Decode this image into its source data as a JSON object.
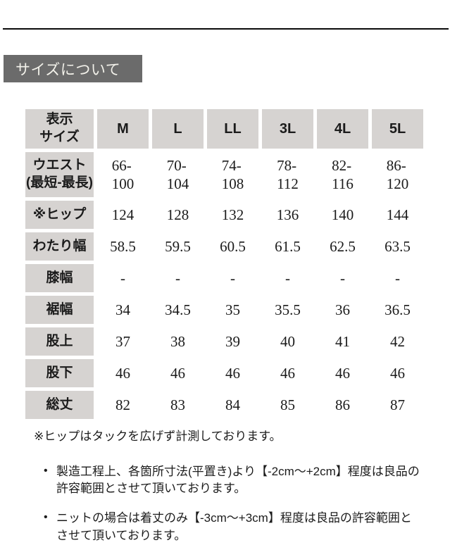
{
  "page": {
    "title_badge": "サイズについて"
  },
  "size_table": {
    "corner_label": [
      "表示",
      "サイズ"
    ],
    "sizes": [
      "M",
      "L",
      "LL",
      "3L",
      "4L",
      "5L"
    ],
    "rows": [
      {
        "key": "waist",
        "label": [
          "ウエスト",
          "(最短-最長)"
        ],
        "values": [
          [
            "66-",
            "100"
          ],
          [
            "70-",
            "104"
          ],
          [
            "74-",
            "108"
          ],
          [
            "78-",
            "112"
          ],
          [
            "82-",
            "116"
          ],
          [
            "86-",
            "120"
          ]
        ]
      },
      {
        "key": "hip",
        "label": "※ヒップ",
        "values": [
          "124",
          "128",
          "132",
          "136",
          "140",
          "144"
        ]
      },
      {
        "key": "thigh-width",
        "label": "わたり幅",
        "values": [
          "58.5",
          "59.5",
          "60.5",
          "61.5",
          "62.5",
          "63.5"
        ]
      },
      {
        "key": "knee-width",
        "label": "膝幅",
        "values": [
          "-",
          "-",
          "-",
          "-",
          "-",
          "-"
        ]
      },
      {
        "key": "hem-width",
        "label": "裾幅",
        "values": [
          "34",
          "34.5",
          "35",
          "35.5",
          "36",
          "36.5"
        ]
      },
      {
        "key": "rise",
        "label": "股上",
        "values": [
          "37",
          "38",
          "39",
          "40",
          "41",
          "42"
        ]
      },
      {
        "key": "inseam",
        "label": "股下",
        "values": [
          "46",
          "46",
          "46",
          "46",
          "46",
          "46"
        ]
      },
      {
        "key": "total-length",
        "label": "総丈",
        "values": [
          "82",
          "83",
          "84",
          "85",
          "86",
          "87"
        ]
      }
    ]
  },
  "notes": {
    "hip_note": "※ヒップはタックを広げず計測しております。",
    "bullet_glyph": "•",
    "bullets": [
      "製造工程上、各箇所寸法(平置き)より【-2cm～+2cm】程度は良品の許容範囲とさせて頂いております。",
      "ニットの場合は着丈のみ【-3cm～+3cm】程度は良品の許容範囲とさせて頂いております。"
    ]
  },
  "colors": {
    "cell_gray": "#d6d3d1",
    "badge_gray": "#6b6b6b",
    "rule_black": "#0a0a0a"
  }
}
